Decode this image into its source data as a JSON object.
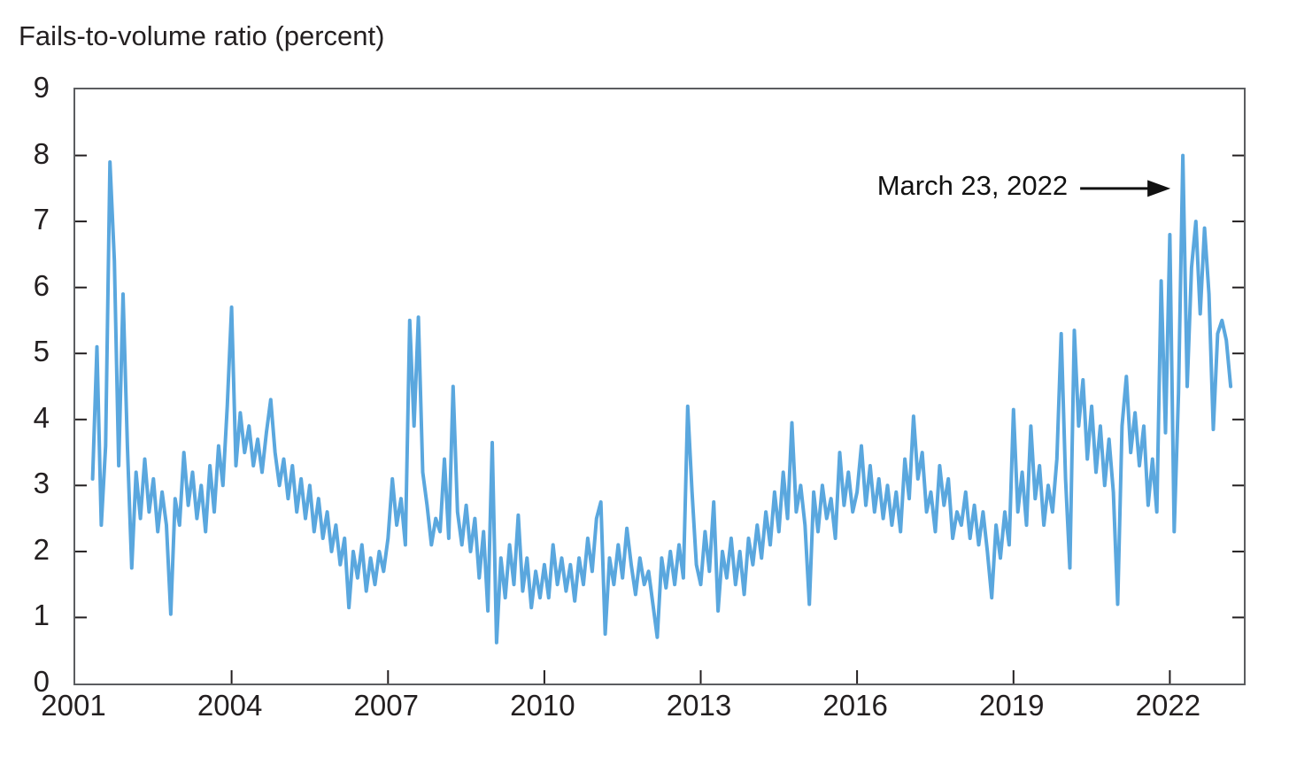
{
  "title": "Fails-to-volume ratio (percent)",
  "colors": {
    "line": "#5AA7DE",
    "frame": "#5B5D60",
    "tick": "#231F20",
    "text": "#231F20",
    "background": "#FFFFFF"
  },
  "chart_data": {
    "type": "line",
    "title": "Fails-to-volume ratio (percent)",
    "series_name": "Fails-to-volume ratio",
    "xlabel": "",
    "ylabel": "percent",
    "xlim": [
      2001,
      2023.42
    ],
    "ylim": [
      0,
      9
    ],
    "x_axis_ticks": [
      2001,
      2004,
      2007,
      2010,
      2013,
      2016,
      2019,
      2022
    ],
    "y_axis_ticks": [
      0,
      1,
      2,
      3,
      4,
      5,
      6,
      7,
      8,
      9
    ],
    "grid": false,
    "legend": false,
    "line_color": "#5AA7DE",
    "annotation": {
      "text": "March 23, 2022",
      "target_year": 2022.25,
      "target_value": 8.0,
      "arrow_y_value": 7.5
    },
    "x_start_year": 2001.3333,
    "x_step_years": 0.0833333,
    "values": [
      3.1,
      5.1,
      2.4,
      3.6,
      7.9,
      6.4,
      3.3,
      5.9,
      3.6,
      1.75,
      3.2,
      2.5,
      3.4,
      2.6,
      3.1,
      2.3,
      2.9,
      2.4,
      1.05,
      2.8,
      2.4,
      3.5,
      2.7,
      3.2,
      2.5,
      3.0,
      2.3,
      3.3,
      2.6,
      3.6,
      3.0,
      4.2,
      5.7,
      3.3,
      4.1,
      3.5,
      3.9,
      3.3,
      3.7,
      3.2,
      3.8,
      4.3,
      3.5,
      3.0,
      3.4,
      2.8,
      3.3,
      2.6,
      3.1,
      2.5,
      3.0,
      2.3,
      2.8,
      2.2,
      2.6,
      2.0,
      2.4,
      1.8,
      2.2,
      1.15,
      2.0,
      1.6,
      2.1,
      1.4,
      1.9,
      1.5,
      2.0,
      1.7,
      2.2,
      3.1,
      2.4,
      2.8,
      2.1,
      5.5,
      3.9,
      5.55,
      3.2,
      2.7,
      2.1,
      2.5,
      2.3,
      3.4,
      2.2,
      4.5,
      2.6,
      2.1,
      2.7,
      2.0,
      2.5,
      1.6,
      2.3,
      1.1,
      3.65,
      0.62,
      1.9,
      1.3,
      2.1,
      1.5,
      2.55,
      1.4,
      1.9,
      1.15,
      1.7,
      1.3,
      1.8,
      1.3,
      2.1,
      1.5,
      1.9,
      1.4,
      1.8,
      1.25,
      1.9,
      1.5,
      2.2,
      1.7,
      2.5,
      2.75,
      0.75,
      1.9,
      1.5,
      2.1,
      1.6,
      2.35,
      1.8,
      1.35,
      1.9,
      1.5,
      1.7,
      1.2,
      0.7,
      1.9,
      1.45,
      2.0,
      1.5,
      2.1,
      1.6,
      4.2,
      2.9,
      1.8,
      1.5,
      2.3,
      1.7,
      2.75,
      1.1,
      2.0,
      1.6,
      2.2,
      1.5,
      2.0,
      1.35,
      2.2,
      1.8,
      2.4,
      1.9,
      2.6,
      2.1,
      2.9,
      2.3,
      3.2,
      2.5,
      3.95,
      2.6,
      3.0,
      2.4,
      1.2,
      2.9,
      2.3,
      3.0,
      2.5,
      2.8,
      2.2,
      3.5,
      2.7,
      3.2,
      2.6,
      2.9,
      3.6,
      2.7,
      3.3,
      2.6,
      3.1,
      2.5,
      3.0,
      2.4,
      2.9,
      2.3,
      3.4,
      2.8,
      4.05,
      3.1,
      3.5,
      2.6,
      2.9,
      2.3,
      3.3,
      2.7,
      3.1,
      2.2,
      2.6,
      2.4,
      2.9,
      2.2,
      2.7,
      2.1,
      2.6,
      2.0,
      1.3,
      2.4,
      1.9,
      2.6,
      2.1,
      4.15,
      2.6,
      3.2,
      2.4,
      3.9,
      2.8,
      3.3,
      2.4,
      3.0,
      2.6,
      3.4,
      5.3,
      3.1,
      1.75,
      5.35,
      3.9,
      4.6,
      3.4,
      4.2,
      3.2,
      3.9,
      3.0,
      3.7,
      2.9,
      1.2,
      3.9,
      4.65,
      3.5,
      4.1,
      3.3,
      3.9,
      2.7,
      3.4,
      2.6,
      6.1,
      3.8,
      6.8,
      2.3,
      4.4,
      8.0,
      4.5,
      6.3,
      7.0,
      5.6,
      6.9,
      5.9,
      3.85,
      5.3,
      5.5,
      5.2,
      4.5
    ]
  }
}
